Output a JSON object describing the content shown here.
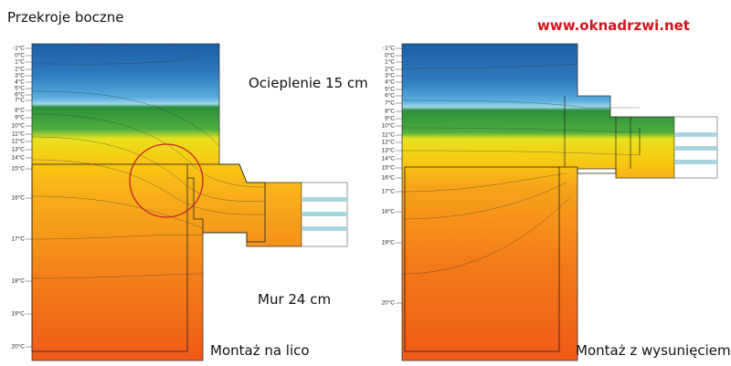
{
  "header": {
    "title": "Przekroje boczne",
    "site": "www.oknadrzwi.net"
  },
  "left": {
    "insulation": "Ocieplenie 15 cm",
    "wall": "Mur 24 cm",
    "caption": "Montaż na lico",
    "temps": [
      "-1°C",
      "0°C",
      "1°C",
      "2°C",
      "3°C",
      "4°C",
      "5°C",
      "6°C",
      "7°C",
      "8°C",
      "9°C",
      "10°C",
      "11°C",
      "12°C",
      "13°C",
      "14°C",
      "15°C",
      "16°C",
      "17°C",
      "18°C",
      "19°C",
      "20°C"
    ]
  },
  "right": {
    "caption": "Montaż z wysunięciem",
    "temps": [
      "-1°C",
      "0°C",
      "1°C",
      "2°C",
      "3°C",
      "4°C",
      "5°C",
      "6°C",
      "7°C",
      "8°C",
      "9°C",
      "10°C",
      "11°C",
      "12°C",
      "13°C",
      "14°C",
      "15°C",
      "16°C",
      "17°C",
      "18°C",
      "19°C",
      "20°C"
    ]
  }
}
